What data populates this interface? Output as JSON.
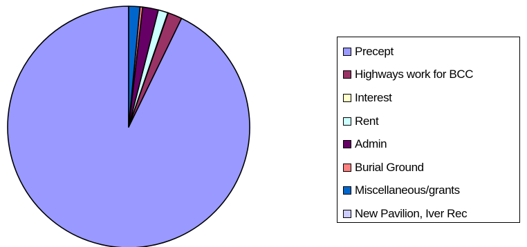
{
  "chart_data": {
    "type": "pie",
    "title": "",
    "slices": [
      {
        "label": "Precept",
        "value": 92.8,
        "color": "#9999ff"
      },
      {
        "label": "Highways work for BCC",
        "value": 1.9,
        "color": "#993366"
      },
      {
        "label": "Interest",
        "value": 0.05,
        "color": "#ffffcc"
      },
      {
        "label": "Rent",
        "value": 1.3,
        "color": "#ccffff"
      },
      {
        "label": "Admin",
        "value": 2.1,
        "color": "#660066"
      },
      {
        "label": "Burial Ground",
        "value": 0.35,
        "color": "#ff8080"
      },
      {
        "label": "Miscellaneous/grants",
        "value": 1.5,
        "color": "#0066cc"
      },
      {
        "label": "New Pavilion, Iver Rec",
        "value": 0.0,
        "color": "#ccccff"
      }
    ],
    "start_angle_deg": 0,
    "direction": "counterclockwise",
    "legend_position": "right"
  }
}
